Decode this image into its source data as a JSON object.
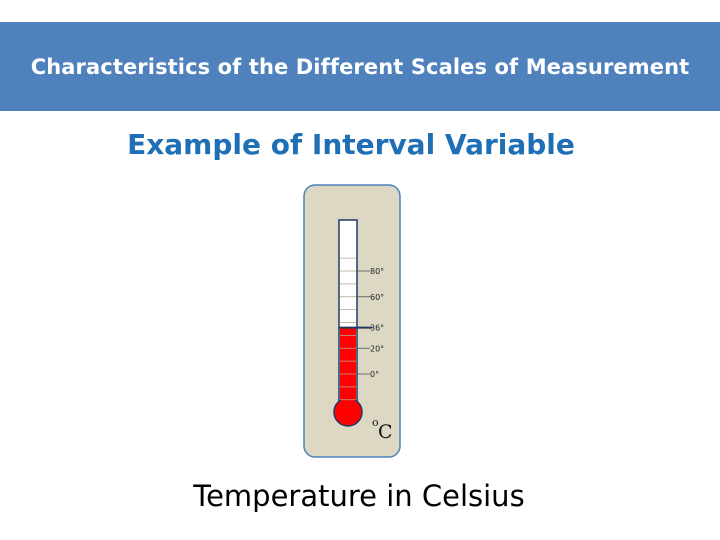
{
  "header": {
    "title": "Characteristics of the Different Scales of Measurement",
    "band_color": "#4f81bd"
  },
  "subtitle": "Example of Interval Variable",
  "thermometer": {
    "scale_ticks": [
      {
        "value": 80,
        "label": "80°"
      },
      {
        "value": 60,
        "label": "60°"
      },
      {
        "value": 36,
        "label": "36°"
      },
      {
        "value": 20,
        "label": "20°"
      },
      {
        "value": 0,
        "label": "0°"
      }
    ],
    "reading_celsius": 36,
    "unit_degree_symbol": "o",
    "unit_letter": "C",
    "liquid_color": "#ff0000",
    "card_color": "#ddd8c4",
    "card_border_color": "#4f81bd"
  },
  "caption": "Temperature in Celsius"
}
